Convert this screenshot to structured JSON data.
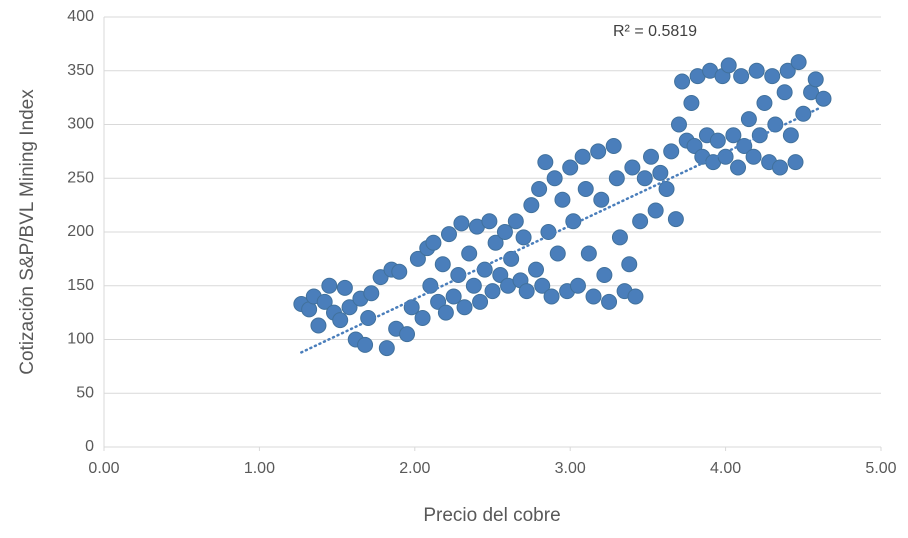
{
  "chart_data": {
    "type": "scatter",
    "xlabel": "Precio del cobre",
    "ylabel": "Cotización S&P/BVL Mining Index",
    "annotation": "R² = 0.5819",
    "color": "#4a7ebb",
    "grid": true,
    "xlim": [
      0,
      5
    ],
    "xticks": [
      {
        "value": 0,
        "label": "0.00"
      },
      {
        "value": 1,
        "label": "1.00"
      },
      {
        "value": 2,
        "label": "2.00"
      },
      {
        "value": 3,
        "label": "3.00"
      },
      {
        "value": 4,
        "label": "4.00"
      },
      {
        "value": 5,
        "label": "5.00"
      }
    ],
    "ylim": [
      0,
      400
    ],
    "yticks": [
      0,
      50,
      100,
      150,
      200,
      250,
      300,
      350,
      400
    ],
    "trendline": {
      "x": [
        1.27,
        4.6
      ],
      "y": [
        88,
        315
      ]
    },
    "x": [
      1.27,
      1.32,
      1.35,
      1.38,
      1.42,
      1.45,
      1.48,
      1.52,
      1.55,
      1.58,
      1.62,
      1.65,
      1.68,
      1.7,
      1.72,
      1.78,
      1.82,
      1.85,
      1.88,
      1.9,
      1.95,
      1.98,
      2.02,
      2.05,
      2.08,
      2.1,
      2.12,
      2.15,
      2.18,
      2.2,
      2.22,
      2.25,
      2.28,
      2.3,
      2.32,
      2.35,
      2.38,
      2.4,
      2.42,
      2.45,
      2.48,
      2.5,
      2.52,
      2.55,
      2.58,
      2.6,
      2.62,
      2.65,
      2.68,
      2.7,
      2.72,
      2.75,
      2.78,
      2.8,
      2.82,
      2.84,
      2.86,
      2.88,
      2.9,
      2.92,
      2.95,
      2.98,
      3.0,
      3.02,
      3.05,
      3.08,
      3.1,
      3.12,
      3.15,
      3.18,
      3.2,
      3.22,
      3.25,
      3.28,
      3.3,
      3.32,
      3.35,
      3.38,
      3.4,
      3.42,
      3.45,
      3.48,
      3.52,
      3.55,
      3.58,
      3.62,
      3.65,
      3.68,
      3.7,
      3.72,
      3.75,
      3.78,
      3.8,
      3.82,
      3.85,
      3.88,
      3.9,
      3.92,
      3.95,
      3.98,
      4.0,
      4.02,
      4.05,
      4.08,
      4.1,
      4.12,
      4.15,
      4.18,
      4.2,
      4.22,
      4.25,
      4.28,
      4.3,
      4.32,
      4.35,
      4.38,
      4.4,
      4.42,
      4.45,
      4.47,
      4.5,
      4.55,
      4.58,
      4.63
    ],
    "values": [
      133,
      128,
      140,
      113,
      135,
      150,
      125,
      118,
      148,
      130,
      100,
      138,
      95,
      120,
      143,
      158,
      92,
      165,
      110,
      163,
      105,
      130,
      175,
      120,
      185,
      150,
      190,
      135,
      170,
      125,
      198,
      140,
      160,
      208,
      130,
      180,
      150,
      205,
      135,
      165,
      210,
      145,
      190,
      160,
      200,
      150,
      175,
      210,
      155,
      195,
      145,
      225,
      165,
      240,
      150,
      265,
      200,
      140,
      250,
      180,
      230,
      145,
      260,
      210,
      150,
      270,
      240,
      180,
      140,
      275,
      230,
      160,
      135,
      280,
      250,
      195,
      145,
      170,
      260,
      140,
      210,
      250,
      270,
      220,
      255,
      240,
      275,
      212,
      300,
      340,
      285,
      320,
      280,
      345,
      270,
      290,
      350,
      265,
      285,
      345,
      270,
      355,
      290,
      260,
      345,
      280,
      305,
      270,
      350,
      290,
      320,
      265,
      345,
      300,
      260,
      330,
      350,
      290,
      265,
      358,
      310,
      330,
      342,
      324
    ]
  }
}
